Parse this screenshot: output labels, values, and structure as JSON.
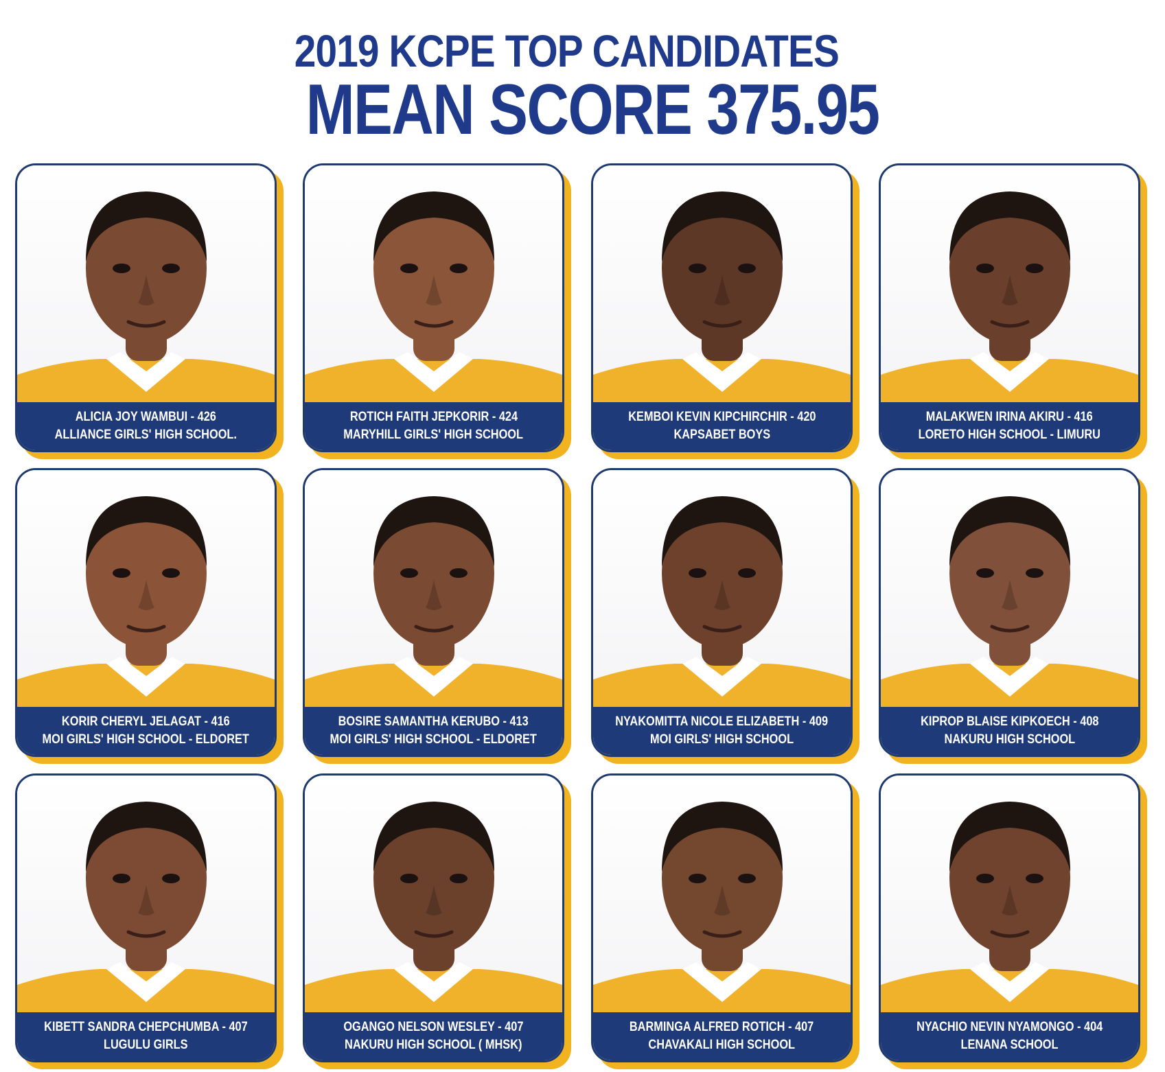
{
  "header": {
    "title": "2019 KCPE TOP CANDIDATES",
    "subtitle": "MEAN SCORE 375.95"
  },
  "colors": {
    "title_blue": "#1f3a8a",
    "caption_bg": "#1f3a78",
    "card_border": "#1f3a6e",
    "accent_gold": "#f2b320",
    "uniform_gold": "#f0b22a"
  },
  "candidates": [
    {
      "line1": "ALICIA JOY WAMBUI - 426",
      "line2": "ALLIANCE GIRLS' HIGH SCHOOL."
    },
    {
      "line1": "ROTICH FAITH JEPKORIR - 424",
      "line2": "MARYHILL GIRLS'  HIGH SCHOOL"
    },
    {
      "line1": "KEMBOI KEVIN KIPCHIRCHIR - 420",
      "line2": "KAPSABET BOYS"
    },
    {
      "line1": "MALAKWEN IRINA AKIRU - 416",
      "line2": "LORETO HIGH SCHOOL - LIMURU"
    },
    {
      "line1": "KORIR CHERYL JELAGAT - 416",
      "line2": "MOI GIRLS' HIGH SCHOOL - ELDORET"
    },
    {
      "line1": "BOSIRE SAMANTHA KERUBO - 413",
      "line2": "MOI GIRLS' HIGH SCHOOL - ELDORET"
    },
    {
      "line1": "NYAKOMITTA NICOLE ELIZABETH - 409",
      "line2": "MOI GIRLS' HIGH SCHOOL"
    },
    {
      "line1": "KIPROP BLAISE KIPKOECH - 408",
      "line2": "NAKURU HIGH SCHOOL"
    },
    {
      "line1": "KIBETT SANDRA CHEPCHUMBA - 407",
      "line2": "LUGULU GIRLS"
    },
    {
      "line1": "OGANGO NELSON WESLEY - 407",
      "line2": "NAKURU HIGH SCHOOL ( MHSK)"
    },
    {
      "line1": "BARMINGA ALFRED ROTICH - 407",
      "line2": "CHAVAKALI HIGH SCHOOL"
    },
    {
      "line1": "NYACHIO NEVIN NYAMONGO - 404",
      "line2": "LENANA SCHOOL"
    }
  ]
}
